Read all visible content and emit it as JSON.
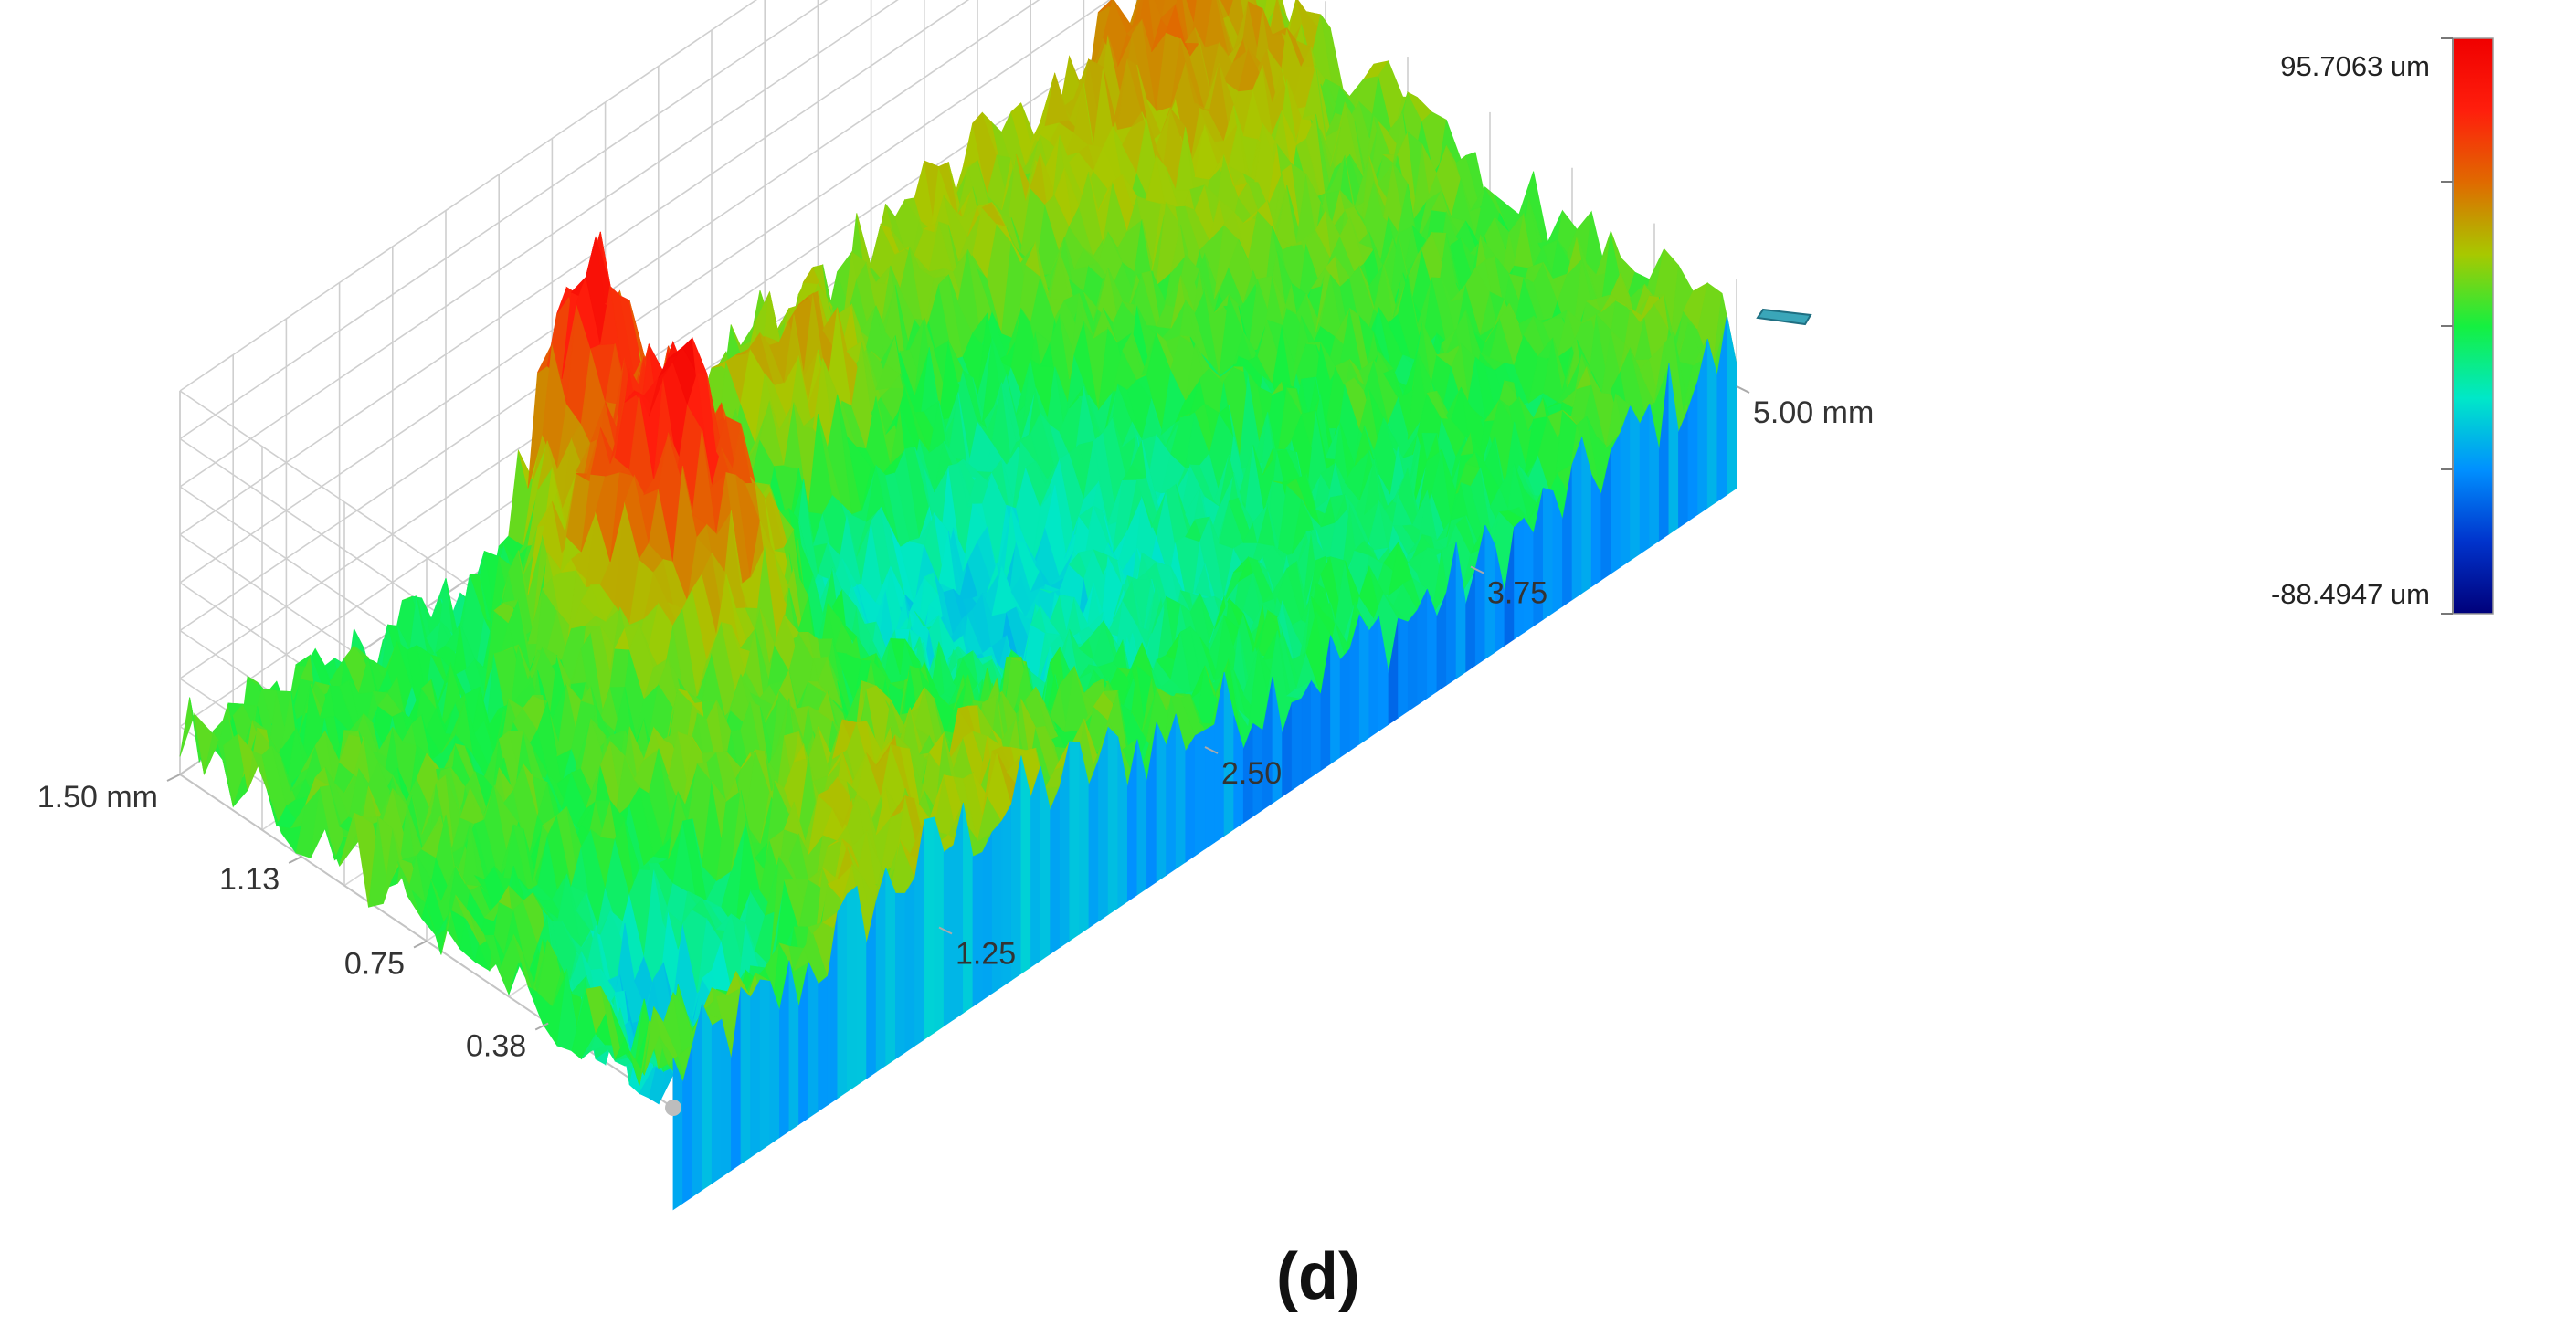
{
  "chart_data": {
    "type": "surface",
    "panel_label": "(d)",
    "x_axis": {
      "unit": "mm",
      "range": [
        0,
        5.0
      ],
      "ticks": [
        {
          "value": 1.25,
          "label": "1.25"
        },
        {
          "value": 2.5,
          "label": "2.50"
        },
        {
          "value": 3.75,
          "label": "3.75"
        },
        {
          "value": 5.0,
          "label": "5.00 mm"
        }
      ]
    },
    "y_axis": {
      "unit": "mm",
      "range": [
        0,
        1.5
      ],
      "ticks": [
        {
          "value": 0.38,
          "label": "0.38"
        },
        {
          "value": 0.75,
          "label": "0.75"
        },
        {
          "value": 1.13,
          "label": "1.13"
        },
        {
          "value": 1.5,
          "label": "1.50 mm"
        }
      ]
    },
    "z_axis": {
      "unit": "um",
      "range": [
        -88.4947,
        95.7063
      ],
      "max_label": "95.7063 um",
      "min_label": "-88.4947 um"
    },
    "colorscale": [
      "#00007a",
      "#0033cc",
      "#0090ff",
      "#00e8c8",
      "#15f040",
      "#a8c800",
      "#e06a00",
      "#ff1e0c",
      "#f00000"
    ],
    "grid": true,
    "colorbar_placement": "right"
  }
}
